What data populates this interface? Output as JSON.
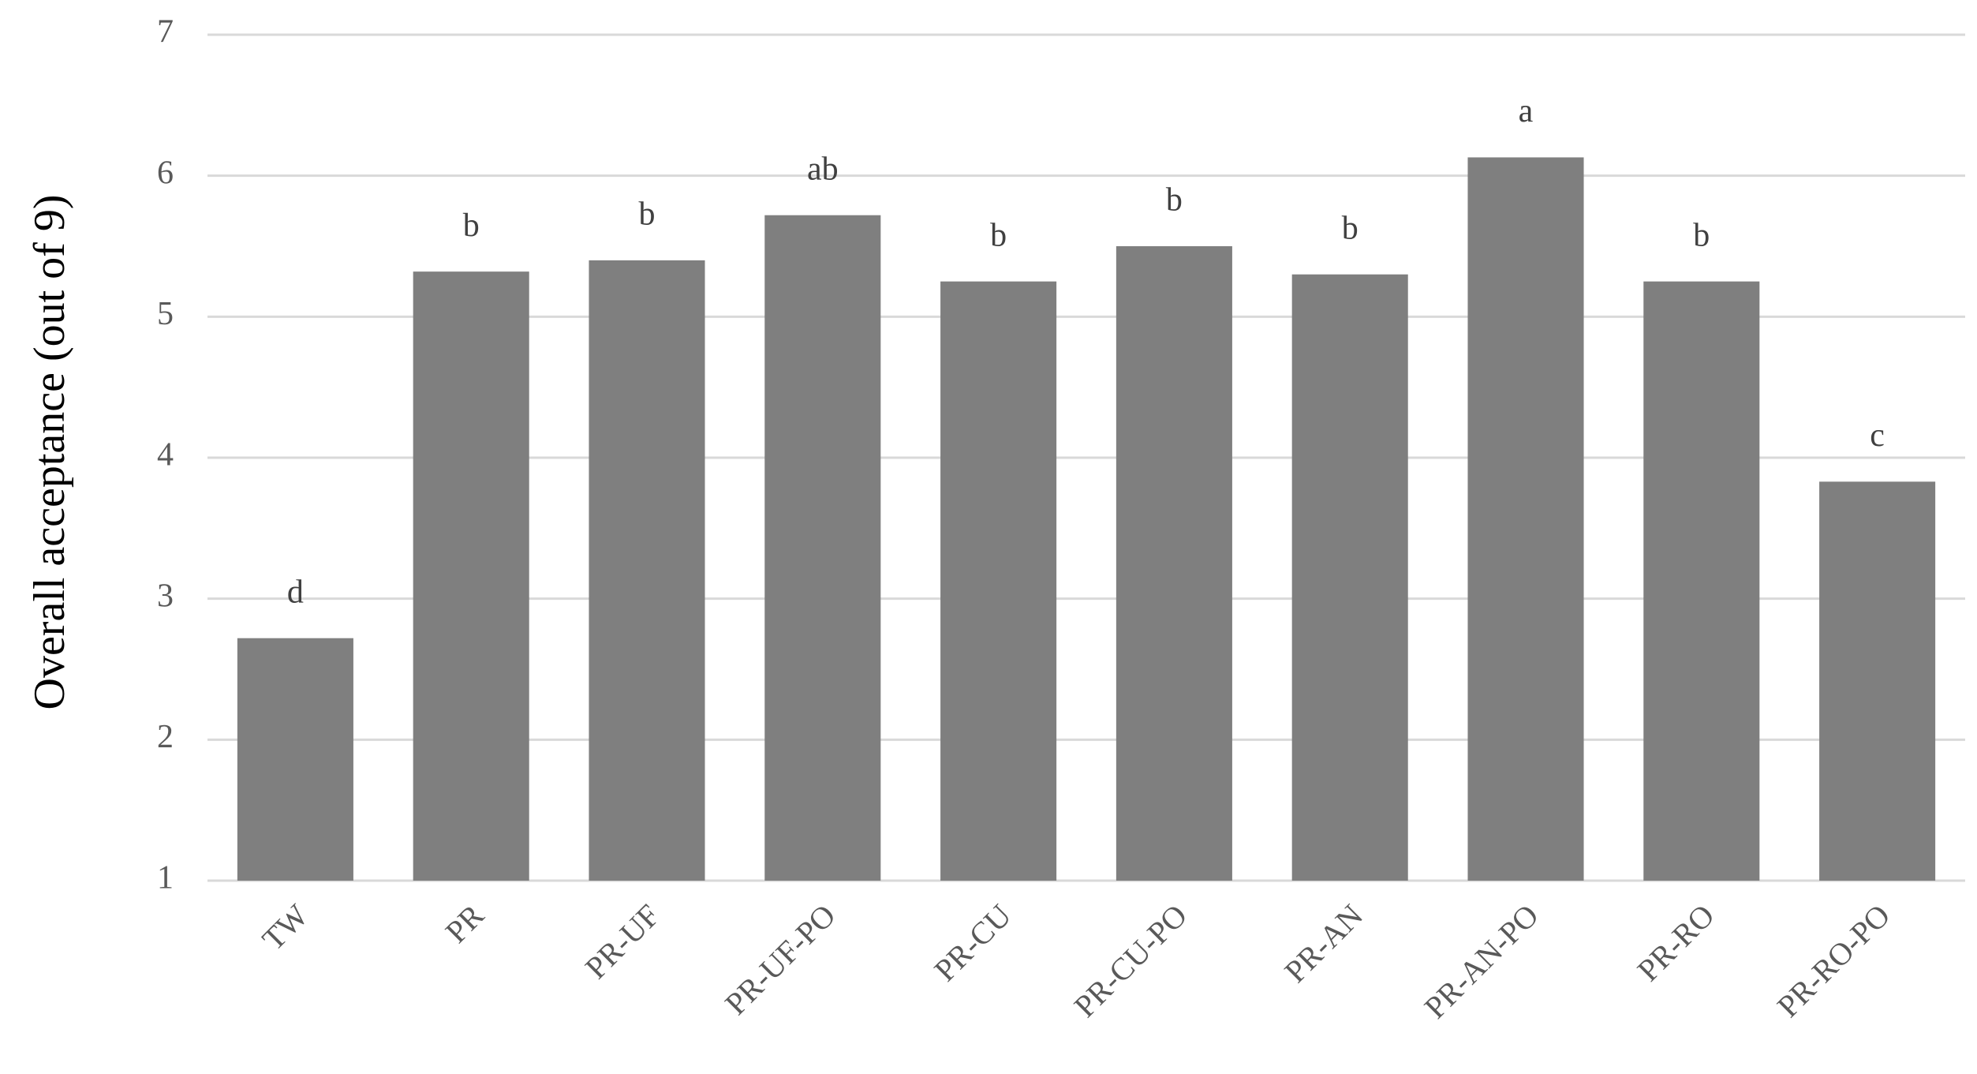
{
  "chart_data": {
    "type": "bar",
    "y_label": "Overall acceptance (out of 9)",
    "categories": [
      "TW",
      "PR",
      "PR-UF",
      "PR-UF-PO",
      "PR-CU",
      "PR-CU-PO",
      "PR-AN",
      "PR-AN-PO",
      "PR-RO",
      "PR-RO-PO"
    ],
    "values": [
      2.72,
      5.32,
      5.4,
      5.72,
      5.25,
      5.5,
      5.3,
      6.13,
      5.25,
      3.83
    ],
    "annotations": [
      "d",
      "b",
      "b",
      "ab",
      "b",
      "b",
      "b",
      "a",
      "b",
      "c"
    ],
    "color": "#7f7f7f",
    "ylim": [
      1,
      7
    ],
    "yticks": [
      1,
      2,
      3,
      4,
      5,
      6,
      7
    ],
    "grid": true
  }
}
